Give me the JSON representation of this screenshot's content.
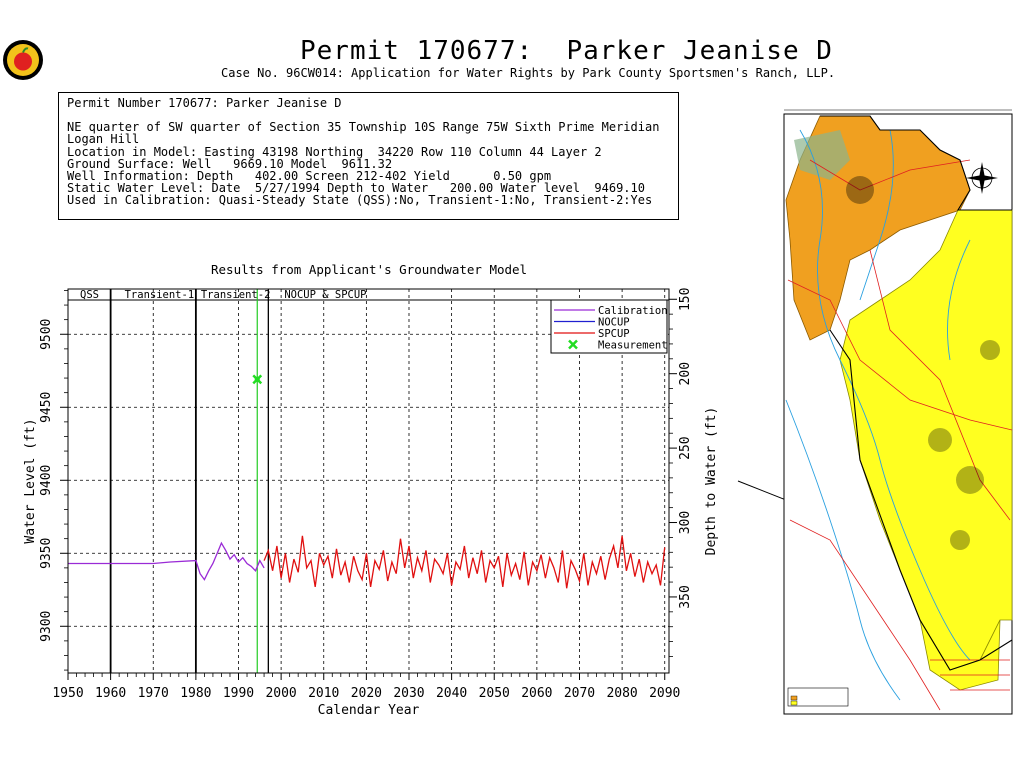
{
  "header": {
    "title": "Permit 170677:  Parker Jeanise D",
    "subtitle": "Case No. 96CW014: Application for Water Rights by Park County Sportsmen's Ranch, LLP."
  },
  "info": {
    "line1": "Permit Number 170677: Parker Jeanise D",
    "line2": "NE quarter of SW quarter of Section 35 Township 10S Range 75W Sixth Prime Meridian",
    "line3": "Logan Hill",
    "line4": "Location in Model: Easting 43198 Northing  34220 Row 110 Column 44 Layer 2",
    "line5": "Ground Surface: Well   9669.10 Model  9611.32",
    "line6": "Well Information: Depth   402.00 Screen 212-402 Yield      0.50 gpm",
    "line7": "Static Water Level: Date  5/27/1994 Depth to Water   200.00 Water level  9469.10",
    "line8": "Used in Calibration: Quasi-Steady State (QSS):No, Transient-1:No, Transient-2:Yes"
  },
  "chart_data": {
    "type": "line",
    "title": "Results from Applicant's Groundwater Model",
    "xlabel": "Calendar Year",
    "ylabel": "Water Level (ft)",
    "y2label": "Depth to Water (ft)",
    "xlim": [
      1950,
      2091
    ],
    "ylim": [
      9268,
      9531
    ],
    "y2lim": [
      143.1,
      401.1
    ],
    "xticks": [
      "1950",
      "1960",
      "1970",
      "1980",
      "1990",
      "2000",
      "2010",
      "2020",
      "2030",
      "2040",
      "2050",
      "2060",
      "2070",
      "2080",
      "2090"
    ],
    "xtick_values": [
      1950,
      1960,
      1970,
      1980,
      1990,
      2000,
      2010,
      2020,
      2030,
      2040,
      2050,
      2060,
      2070,
      2080,
      2090
    ],
    "yticks": [
      "9300",
      "9350",
      "9400",
      "9450",
      "9500"
    ],
    "ytick_values": [
      9300,
      9350,
      9400,
      9450,
      9500
    ],
    "y2ticks": [
      "150",
      "200",
      "250",
      "300",
      "350"
    ],
    "y2tick_values": [
      150,
      200,
      250,
      300,
      350
    ],
    "periods": [
      "QSS",
      "Transient-1",
      "Transient-2",
      "NOCUP  &  SPCUP"
    ],
    "period_bounds": [
      1960,
      1980,
      1997
    ],
    "grid": true,
    "legend_position": "top-right",
    "series": [
      {
        "name": "Calibration",
        "color": "#9a2bd6",
        "x": [
          1950,
          1970,
          1974,
          1980,
          1981,
          1982,
          1983,
          1984,
          1985,
          1986,
          1987,
          1988,
          1989,
          1990,
          1991,
          1992,
          1993,
          1994,
          1995,
          1996
        ],
        "y": [
          9343,
          9343,
          9344,
          9345,
          9336,
          9332,
          9338,
          9343,
          9350,
          9357,
          9352,
          9346,
          9349,
          9344,
          9347,
          9343,
          9341,
          9338,
          9345,
          9340
        ]
      },
      {
        "name": "NOCUP",
        "color": "#2020d0",
        "x": [
          1996,
          2090
        ],
        "y": [
          9341,
          9341
        ]
      },
      {
        "name": "SPCUP",
        "color": "#e01010",
        "x": [
          1996,
          1997,
          1998,
          1999,
          2000,
          2001,
          2002,
          2003,
          2004,
          2005,
          2006,
          2007,
          2008,
          2009,
          2010,
          2011,
          2012,
          2013,
          2014,
          2015,
          2016,
          2017,
          2018,
          2019,
          2020,
          2021,
          2022,
          2023,
          2024,
          2025,
          2026,
          2027,
          2028,
          2029,
          2030,
          2031,
          2032,
          2033,
          2034,
          2035,
          2036,
          2037,
          2038,
          2039,
          2040,
          2041,
          2042,
          2043,
          2044,
          2045,
          2046,
          2047,
          2048,
          2049,
          2050,
          2051,
          2052,
          2053,
          2054,
          2055,
          2056,
          2057,
          2058,
          2059,
          2060,
          2061,
          2062,
          2063,
          2064,
          2065,
          2066,
          2067,
          2068,
          2069,
          2070,
          2071,
          2072,
          2073,
          2074,
          2075,
          2076,
          2077,
          2078,
          2079,
          2080,
          2081,
          2082,
          2083,
          2084,
          2085,
          2086,
          2087,
          2088,
          2089,
          2090
        ],
        "y": [
          9345,
          9352,
          9338,
          9355,
          9333,
          9350,
          9330,
          9346,
          9337,
          9362,
          9340,
          9345,
          9327,
          9350,
          9342,
          9348,
          9333,
          9353,
          9335,
          9344,
          9330,
          9348,
          9338,
          9332,
          9350,
          9327,
          9345,
          9339,
          9352,
          9331,
          9344,
          9336,
          9360,
          9340,
          9355,
          9333,
          9347,
          9338,
          9352,
          9330,
          9346,
          9342,
          9336,
          9350,
          9328,
          9344,
          9339,
          9355,
          9333,
          9347,
          9336,
          9352,
          9330,
          9345,
          9340,
          9348,
          9327,
          9350,
          9335,
          9343,
          9332,
          9351,
          9328,
          9344,
          9338,
          9349,
          9333,
          9347,
          9340,
          9330,
          9352,
          9326,
          9345,
          9339,
          9331,
          9350,
          9328,
          9344,
          9336,
          9348,
          9332,
          9346,
          9355,
          9340,
          9362,
          9338,
          9350,
          9334,
          9346,
          9330,
          9344,
          9336,
          9342,
          9328,
          9354
        ]
      },
      {
        "name": "Measurement",
        "color": "#22dd22",
        "type": "scatter",
        "x": [
          1994.4
        ],
        "y": [
          9469.1
        ]
      }
    ],
    "measurement_vline": 1994.4
  }
}
